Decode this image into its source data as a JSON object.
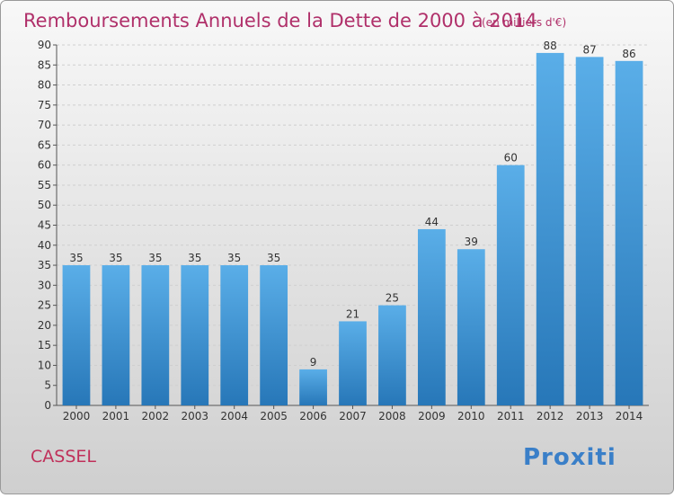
{
  "chart_data": {
    "type": "bar",
    "title": "Remboursements Annuels de la Dette de 2000 à 2014",
    "subtitle": "(en milliers d'€)",
    "categories": [
      "2000",
      "2001",
      "2002",
      "2003",
      "2004",
      "2005",
      "2006",
      "2007",
      "2008",
      "2009",
      "2010",
      "2011",
      "2012",
      "2013",
      "2014"
    ],
    "values": [
      35,
      35,
      35,
      35,
      35,
      35,
      9,
      21,
      25,
      44,
      39,
      60,
      88,
      87,
      86
    ],
    "ylim": [
      0,
      90
    ],
    "yticks": [
      0,
      5,
      10,
      15,
      20,
      25,
      30,
      35,
      40,
      45,
      50,
      55,
      60,
      65,
      70,
      75,
      80,
      85,
      90
    ],
    "grid": true,
    "legend": "none"
  },
  "labels": {
    "place": "CASSEL",
    "logo": "Proxiti"
  },
  "colors": {
    "title": "#b0306a",
    "place": "#c0305a",
    "bar_top": "#5aaee8",
    "bar_bottom": "#2777b8",
    "grid": "#cfcfcf",
    "axis_text": "#333333"
  }
}
